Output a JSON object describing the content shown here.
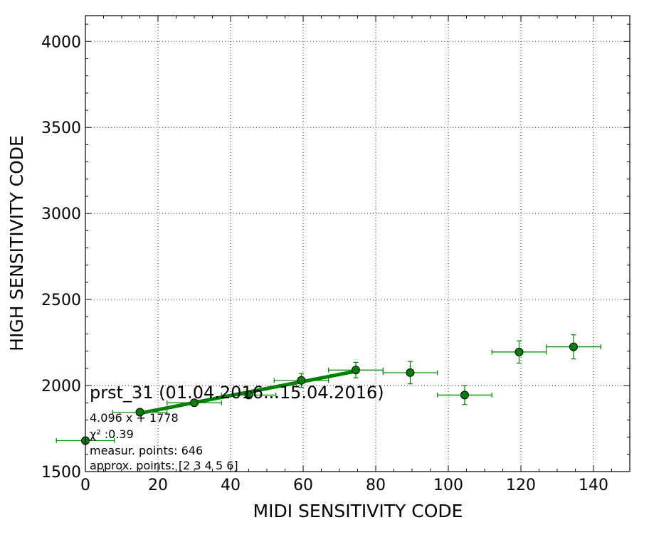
{
  "chart_data": {
    "type": "scatter",
    "xlabel": "MIDI SENSITIVITY CODE",
    "ylabel": "HIGH SENSITIVITY CODE",
    "xlim": [
      0,
      150
    ],
    "ylim": [
      1500,
      4150
    ],
    "x_ticks": [
      0,
      20,
      40,
      60,
      80,
      100,
      120,
      140
    ],
    "y_ticks": [
      1500,
      2000,
      2500,
      3000,
      3500,
      4000
    ],
    "grid": true,
    "colors": {
      "series": "#008000",
      "marker_face": "#008000",
      "marker_edge": "#000000"
    },
    "series": [
      {
        "kind": "errorbar",
        "points": [
          {
            "x": 0,
            "y": 1680,
            "xerr": 8,
            "yerr": 0
          },
          {
            "x": 15,
            "y": 1845,
            "xerr": 7.5,
            "yerr": 0
          },
          {
            "x": 30,
            "y": 1900,
            "xerr": 7.5,
            "yerr": 0
          },
          {
            "x": 45,
            "y": 1945,
            "xerr": 7.5,
            "yerr": 0
          },
          {
            "x": 59.5,
            "y": 2030,
            "xerr": 7.5,
            "yerr": 40
          },
          {
            "x": 74.5,
            "y": 2090,
            "xerr": 7.5,
            "yerr": 45
          },
          {
            "x": 89.5,
            "y": 2075,
            "xerr": 7.5,
            "yerr": 65
          },
          {
            "x": 104.5,
            "y": 1945,
            "xerr": 7.5,
            "yerr": 55
          },
          {
            "x": 119.5,
            "y": 2195,
            "xerr": 7.5,
            "yerr": 65
          },
          {
            "x": 134.5,
            "y": 2225,
            "xerr": 7.5,
            "yerr": 70
          }
        ]
      },
      {
        "kind": "fit-line",
        "slope": 4.096,
        "intercept": 1778,
        "x_range": [
          15,
          74.5
        ]
      }
    ],
    "annotation": {
      "title": "prst_31 (01.04.2016...15.04.2016)",
      "equation": "4.096 x + 1778",
      "chi2": "χ² :0.39",
      "measured": "measur. points: 646",
      "approx": "approx. points: [2 3 4 5 6]"
    }
  }
}
